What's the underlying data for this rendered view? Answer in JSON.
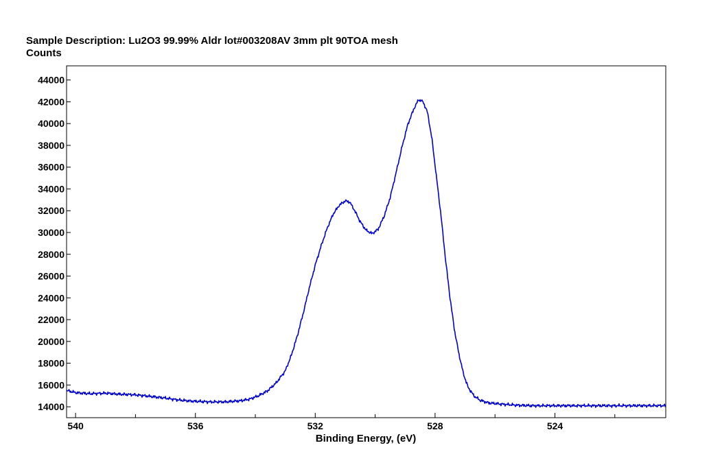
{
  "chart_data": {
    "type": "line",
    "title": "Sample Description:  Lu2O3 99.99% Aldr lot#003208AV 3mm plt 90TOA mesh",
    "ylabel": "Counts",
    "xlabel": "Binding Energy, (eV)",
    "xlim": [
      540.3,
      520.3
    ],
    "ylim": [
      13000,
      45300
    ],
    "x_reversed": true,
    "grid": false,
    "line_color": "#0000cc",
    "x_ticks": [
      540,
      536,
      532,
      528,
      524
    ],
    "x_tick_labels": [
      "540",
      "536",
      "532",
      "528",
      "524"
    ],
    "x_minor_ticks": [
      538,
      534,
      530,
      526,
      522
    ],
    "y_ticks": [
      14000,
      16000,
      18000,
      20000,
      22000,
      24000,
      26000,
      28000,
      30000,
      32000,
      34000,
      36000,
      38000,
      40000,
      42000,
      44000
    ],
    "y_tick_labels": [
      "14000",
      "16000",
      "18000",
      "20000",
      "22000",
      "24000",
      "26000",
      "28000",
      "30000",
      "32000",
      "34000",
      "36000",
      "38000",
      "40000",
      "42000",
      "44000"
    ],
    "series": [
      {
        "points": [
          [
            540.3,
            15500
          ],
          [
            540.0,
            15300
          ],
          [
            539.5,
            15200
          ],
          [
            539.0,
            15250
          ],
          [
            538.5,
            15150
          ],
          [
            538.0,
            15100
          ],
          [
            537.5,
            14950
          ],
          [
            537.0,
            14800
          ],
          [
            536.5,
            14600
          ],
          [
            536.0,
            14500
          ],
          [
            535.5,
            14450
          ],
          [
            535.0,
            14450
          ],
          [
            534.5,
            14550
          ],
          [
            534.2,
            14700
          ],
          [
            533.9,
            15000
          ],
          [
            533.6,
            15450
          ],
          [
            533.3,
            16200
          ],
          [
            533.0,
            17300
          ],
          [
            532.8,
            18700
          ],
          [
            532.6,
            20500
          ],
          [
            532.4,
            22600
          ],
          [
            532.2,
            24900
          ],
          [
            532.0,
            27000
          ],
          [
            531.8,
            28800
          ],
          [
            531.6,
            30400
          ],
          [
            531.4,
            31700
          ],
          [
            531.2,
            32500
          ],
          [
            531.0,
            32900
          ],
          [
            530.85,
            32800
          ],
          [
            530.7,
            32100
          ],
          [
            530.5,
            31000
          ],
          [
            530.3,
            30200
          ],
          [
            530.1,
            29900
          ],
          [
            529.9,
            30300
          ],
          [
            529.7,
            31500
          ],
          [
            529.5,
            33200
          ],
          [
            529.3,
            35500
          ],
          [
            529.1,
            37900
          ],
          [
            528.9,
            40000
          ],
          [
            528.7,
            41400
          ],
          [
            528.55,
            42200
          ],
          [
            528.4,
            42000
          ],
          [
            528.25,
            41000
          ],
          [
            528.1,
            38500
          ],
          [
            527.95,
            35000
          ],
          [
            527.8,
            31500
          ],
          [
            527.65,
            27500
          ],
          [
            527.5,
            24000
          ],
          [
            527.35,
            21000
          ],
          [
            527.2,
            18800
          ],
          [
            527.05,
            17000
          ],
          [
            526.9,
            15800
          ],
          [
            526.7,
            15000
          ],
          [
            526.5,
            14600
          ],
          [
            526.2,
            14350
          ],
          [
            525.8,
            14250
          ],
          [
            525.3,
            14150
          ],
          [
            524.8,
            14100
          ],
          [
            524.0,
            14100
          ],
          [
            523.0,
            14100
          ],
          [
            522.0,
            14100
          ],
          [
            521.0,
            14100
          ],
          [
            520.3,
            14100
          ]
        ]
      }
    ]
  }
}
